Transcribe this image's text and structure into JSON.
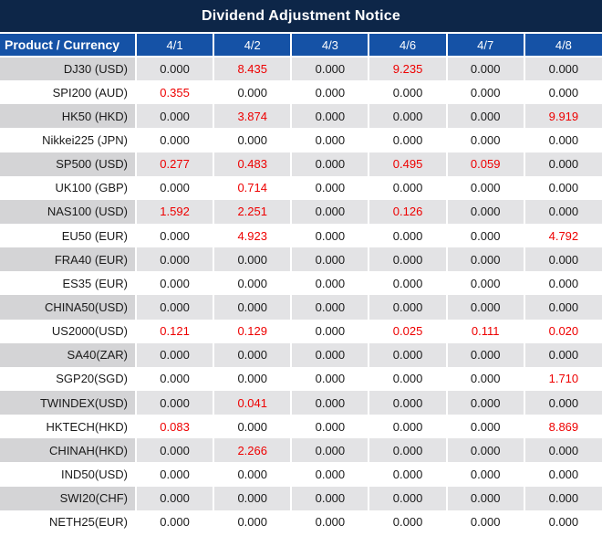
{
  "title": "Dividend Adjustment Notice",
  "colors": {
    "title_bg": "#0d2648",
    "header_bg": "#1552a6",
    "row_stripe": "#e3e3e5",
    "row_stripe_product": "#d4d4d6",
    "row_white": "#ffffff",
    "text_dark": "#1a1a1a",
    "text_red": "#ee0000",
    "divider": "#ffffff"
  },
  "table": {
    "product_header": "Product / Currency",
    "date_headers": [
      "4/1",
      "4/2",
      "4/3",
      "4/6",
      "4/7",
      "4/8"
    ],
    "rows": [
      {
        "product": "DJ30 (USD)",
        "values": [
          "0.000",
          "8.435",
          "0.000",
          "9.235",
          "0.000",
          "0.000"
        ]
      },
      {
        "product": "SPI200 (AUD)",
        "values": [
          "0.355",
          "0.000",
          "0.000",
          "0.000",
          "0.000",
          "0.000"
        ]
      },
      {
        "product": "HK50 (HKD)",
        "values": [
          "0.000",
          "3.874",
          "0.000",
          "0.000",
          "0.000",
          "9.919"
        ]
      },
      {
        "product": "Nikkei225 (JPN)",
        "values": [
          "0.000",
          "0.000",
          "0.000",
          "0.000",
          "0.000",
          "0.000"
        ]
      },
      {
        "product": "SP500 (USD)",
        "values": [
          "0.277",
          "0.483",
          "0.000",
          "0.495",
          "0.059",
          "0.000"
        ]
      },
      {
        "product": "UK100 (GBP)",
        "values": [
          "0.000",
          "0.714",
          "0.000",
          "0.000",
          "0.000",
          "0.000"
        ]
      },
      {
        "product": "NAS100 (USD)",
        "values": [
          "1.592",
          "2.251",
          "0.000",
          "0.126",
          "0.000",
          "0.000"
        ]
      },
      {
        "product": "EU50 (EUR)",
        "values": [
          "0.000",
          "4.923",
          "0.000",
          "0.000",
          "0.000",
          "4.792"
        ]
      },
      {
        "product": "FRA40 (EUR)",
        "values": [
          "0.000",
          "0.000",
          "0.000",
          "0.000",
          "0.000",
          "0.000"
        ]
      },
      {
        "product": "ES35 (EUR)",
        "values": [
          "0.000",
          "0.000",
          "0.000",
          "0.000",
          "0.000",
          "0.000"
        ]
      },
      {
        "product": "CHINA50(USD)",
        "values": [
          "0.000",
          "0.000",
          "0.000",
          "0.000",
          "0.000",
          "0.000"
        ]
      },
      {
        "product": "US2000(USD)",
        "values": [
          "0.121",
          "0.129",
          "0.000",
          "0.025",
          "0.111",
          "0.020"
        ]
      },
      {
        "product": "SA40(ZAR)",
        "values": [
          "0.000",
          "0.000",
          "0.000",
          "0.000",
          "0.000",
          "0.000"
        ]
      },
      {
        "product": "SGP20(SGD)",
        "values": [
          "0.000",
          "0.000",
          "0.000",
          "0.000",
          "0.000",
          "1.710"
        ]
      },
      {
        "product": "TWINDEX(USD)",
        "values": [
          "0.000",
          "0.041",
          "0.000",
          "0.000",
          "0.000",
          "0.000"
        ]
      },
      {
        "product": "HKTECH(HKD)",
        "values": [
          "0.083",
          "0.000",
          "0.000",
          "0.000",
          "0.000",
          "8.869"
        ]
      },
      {
        "product": "CHINAH(HKD)",
        "values": [
          "0.000",
          "2.266",
          "0.000",
          "0.000",
          "0.000",
          "0.000"
        ]
      },
      {
        "product": "IND50(USD)",
        "values": [
          "0.000",
          "0.000",
          "0.000",
          "0.000",
          "0.000",
          "0.000"
        ]
      },
      {
        "product": "SWI20(CHF)",
        "values": [
          "0.000",
          "0.000",
          "0.000",
          "0.000",
          "0.000",
          "0.000"
        ]
      },
      {
        "product": "NETH25(EUR)",
        "values": [
          "0.000",
          "0.000",
          "0.000",
          "0.000",
          "0.000",
          "0.000"
        ]
      }
    ]
  }
}
